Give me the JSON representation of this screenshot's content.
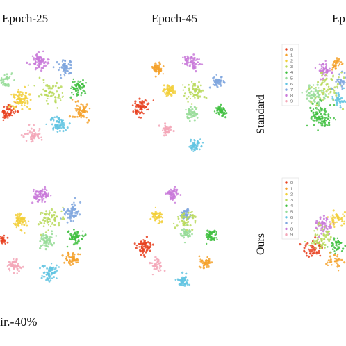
{
  "column_titles": [
    "Epoch-25",
    "Epoch-45",
    "Ep"
  ],
  "row_labels": [
    "Standard",
    "Ours"
  ],
  "caption": "ir.-40%",
  "legend_entries": [
    "0",
    "1",
    "2",
    "3",
    "4",
    "5",
    "6",
    "7",
    "8",
    "9"
  ],
  "class_colors": [
    "#e8401f",
    "#f4a12a",
    "#f2cf3a",
    "#b9d95a",
    "#3fbf3f",
    "#97dc98",
    "#62c4e2",
    "#7fa6de",
    "#c97ad9",
    "#f3a6b7"
  ],
  "chart_data": [
    {
      "type": "scatter",
      "panel": "row1-col1",
      "title": "Epoch-25",
      "clusters": [
        {
          "class": "8",
          "center": [
            -2,
            24
          ],
          "spread": 4,
          "points": 70
        },
        {
          "class": "7",
          "center": [
            14,
            20
          ],
          "spread": 4,
          "points": 60
        },
        {
          "class": "4",
          "center": [
            22,
            8
          ],
          "spread": 4,
          "points": 60
        },
        {
          "class": "1",
          "center": [
            24,
            -8
          ],
          "spread": 5,
          "points": 60
        },
        {
          "class": "6",
          "center": [
            10,
            -16
          ],
          "spread": 4,
          "points": 70
        },
        {
          "class": "9",
          "center": [
            -6,
            -22
          ],
          "spread": 4,
          "points": 50
        },
        {
          "class": "0",
          "center": [
            -22,
            -8
          ],
          "spread": 4,
          "points": 50
        },
        {
          "class": "2",
          "center": [
            -14,
            0
          ],
          "spread": 5,
          "points": 70
        },
        {
          "class": "5",
          "center": [
            -24,
            12
          ],
          "spread": 4,
          "points": 40
        },
        {
          "class": "3",
          "center": [
            4,
            4
          ],
          "spread": 7,
          "points": 60
        }
      ]
    },
    {
      "type": "scatter",
      "panel": "row1-col2",
      "title": "Epoch-45",
      "clusters": [
        {
          "class": "1",
          "center": [
            -14,
            20
          ],
          "spread": 3,
          "points": 50
        },
        {
          "class": "8",
          "center": [
            8,
            24
          ],
          "spread": 4,
          "points": 60
        },
        {
          "class": "7",
          "center": [
            24,
            12
          ],
          "spread": 3,
          "points": 50
        },
        {
          "class": "4",
          "center": [
            26,
            -6
          ],
          "spread": 3,
          "points": 55
        },
        {
          "class": "0",
          "center": [
            -24,
            -4
          ],
          "spread": 4,
          "points": 60
        },
        {
          "class": "2",
          "center": [
            -6,
            6
          ],
          "spread": 3,
          "points": 55
        },
        {
          "class": "5",
          "center": [
            8,
            -8
          ],
          "spread": 3,
          "points": 50
        },
        {
          "class": "9",
          "center": [
            -8,
            -18
          ],
          "spread": 3,
          "points": 40
        },
        {
          "class": "6",
          "center": [
            10,
            -28
          ],
          "spread": 3,
          "points": 50
        },
        {
          "class": "3",
          "center": [
            10,
            6
          ],
          "spread": 6,
          "points": 60
        }
      ]
    },
    {
      "type": "scatter",
      "panel": "row1-col3",
      "title": "Ep",
      "clusters": [
        {
          "class": "8",
          "center": [
            -4,
            18
          ],
          "spread": 4,
          "points": 50
        },
        {
          "class": "4",
          "center": [
            -6,
            -12
          ],
          "spread": 6,
          "points": 90
        },
        {
          "class": "5",
          "center": [
            -10,
            2
          ],
          "spread": 5,
          "points": 60
        },
        {
          "class": "7",
          "center": [
            8,
            10
          ],
          "spread": 5,
          "points": 40
        },
        {
          "class": "6",
          "center": [
            6,
            -2
          ],
          "spread": 4,
          "points": 40
        },
        {
          "class": "1",
          "center": [
            4,
            22
          ],
          "spread": 3,
          "points": 30
        },
        {
          "class": "3",
          "center": [
            -2,
            6
          ],
          "spread": 8,
          "points": 60
        }
      ]
    },
    {
      "type": "scatter",
      "panel": "row2-col1",
      "title": "",
      "clusters": [
        {
          "class": "8",
          "center": [
            -2,
            24
          ],
          "spread": 4,
          "points": 70
        },
        {
          "class": "7",
          "center": [
            18,
            14
          ],
          "spread": 4,
          "points": 60
        },
        {
          "class": "4",
          "center": [
            20,
            -2
          ],
          "spread": 4,
          "points": 60
        },
        {
          "class": "1",
          "center": [
            18,
            -16
          ],
          "spread": 4,
          "points": 50
        },
        {
          "class": "6",
          "center": [
            4,
            -24
          ],
          "spread": 4,
          "points": 70
        },
        {
          "class": "9",
          "center": [
            -18,
            -20
          ],
          "spread": 4,
          "points": 50
        },
        {
          "class": "0",
          "center": [
            -26,
            -4
          ],
          "spread": 3,
          "points": 40
        },
        {
          "class": "2",
          "center": [
            -14,
            8
          ],
          "spread": 4,
          "points": 60
        },
        {
          "class": "5",
          "center": [
            2,
            -4
          ],
          "spread": 4,
          "points": 50
        },
        {
          "class": "3",
          "center": [
            4,
            10
          ],
          "spread": 6,
          "points": 60
        }
      ]
    },
    {
      "type": "scatter",
      "panel": "row2-col2",
      "title": "",
      "clusters": [
        {
          "class": "8",
          "center": [
            -4,
            26
          ],
          "spread": 3,
          "points": 55
        },
        {
          "class": "2",
          "center": [
            -14,
            12
          ],
          "spread": 3,
          "points": 45
        },
        {
          "class": "7",
          "center": [
            4,
            14
          ],
          "spread": 3,
          "points": 45
        },
        {
          "class": "4",
          "center": [
            20,
            0
          ],
          "spread": 3,
          "points": 50
        },
        {
          "class": "0",
          "center": [
            -22,
            -6
          ],
          "spread": 4,
          "points": 60
        },
        {
          "class": "1",
          "center": [
            16,
            -16
          ],
          "spread": 3,
          "points": 45
        },
        {
          "class": "9",
          "center": [
            -14,
            -18
          ],
          "spread": 3,
          "points": 40
        },
        {
          "class": "6",
          "center": [
            2,
            -28
          ],
          "spread": 3,
          "points": 50
        },
        {
          "class": "5",
          "center": [
            4,
            2
          ],
          "spread": 3,
          "points": 40
        },
        {
          "class": "3",
          "center": [
            4,
            10
          ],
          "spread": 5,
          "points": 50
        }
      ]
    },
    {
      "type": "scatter",
      "panel": "row2-col3",
      "title": "",
      "clusters": [
        {
          "class": "8",
          "center": [
            -2,
            10
          ],
          "spread": 5,
          "points": 60
        },
        {
          "class": "0",
          "center": [
            -10,
            -6
          ],
          "spread": 5,
          "points": 50
        },
        {
          "class": "2",
          "center": [
            6,
            14
          ],
          "spread": 4,
          "points": 40
        },
        {
          "class": "4",
          "center": [
            6,
            -4
          ],
          "spread": 4,
          "points": 40
        },
        {
          "class": "3",
          "center": [
            -4,
            0
          ],
          "spread": 7,
          "points": 60
        },
        {
          "class": "1",
          "center": [
            4,
            -14
          ],
          "spread": 4,
          "points": 30
        }
      ]
    }
  ]
}
